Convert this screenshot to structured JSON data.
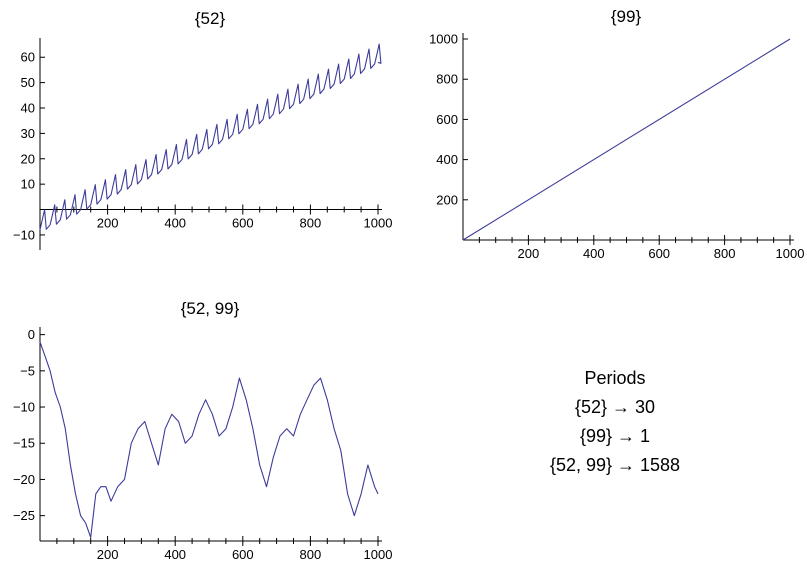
{
  "chart_data": [
    {
      "type": "line",
      "title": "{52}",
      "xlim": [
        0,
        1000
      ],
      "ylim": [
        -12,
        66
      ],
      "x_ticks": [
        200,
        400,
        600,
        800,
        1000
      ],
      "y_ticks": [
        -10,
        10,
        20,
        30,
        40,
        50,
        60
      ],
      "series": [
        {
          "x": [
            0,
            1000
          ],
          "y": [
            -8,
            58
          ],
          "period": 30,
          "spike_height": 7,
          "color": "#3c3c9a"
        }
      ]
    },
    {
      "type": "line",
      "title": "{99}",
      "xlim": [
        0,
        1000
      ],
      "ylim": [
        0,
        1010
      ],
      "x_ticks": [
        200,
        400,
        600,
        800,
        1000
      ],
      "y_ticks": [
        200,
        400,
        600,
        800,
        1000
      ],
      "series": [
        {
          "x": [
            0,
            1000
          ],
          "y": [
            0,
            1000
          ],
          "color": "#3c3c9a"
        }
      ]
    },
    {
      "type": "line",
      "title": "{52, 99}",
      "xlim": [
        0,
        1000
      ],
      "ylim": [
        -28.5,
        0.5
      ],
      "x_ticks": [
        200,
        400,
        600,
        800,
        1000
      ],
      "y_ticks": [
        0,
        -5,
        -10,
        -15,
        -20,
        -25
      ],
      "series": [
        {
          "x": [
            0,
            15,
            30,
            45,
            60,
            75,
            90,
            105,
            120,
            135,
            150,
            165,
            180,
            195,
            210,
            230,
            250,
            270,
            290,
            310,
            330,
            350,
            370,
            390,
            410,
            430,
            450,
            470,
            490,
            510,
            530,
            550,
            570,
            590,
            610,
            630,
            650,
            670,
            690,
            710,
            730,
            750,
            770,
            790,
            810,
            830,
            850,
            870,
            890,
            910,
            930,
            950,
            970,
            990,
            1000
          ],
          "y": [
            -1,
            -3,
            -5,
            -8,
            -10,
            -13,
            -18,
            -22,
            -25,
            -26,
            -28,
            -22,
            -21,
            -21,
            -23,
            -21,
            -20,
            -15,
            -13,
            -12,
            -15,
            -18,
            -13,
            -11,
            -12,
            -15,
            -14,
            -11,
            -9,
            -11,
            -14,
            -13,
            -10,
            -6,
            -9,
            -13,
            -18,
            -21,
            -17,
            -14,
            -13,
            -14,
            -11,
            -9,
            -7,
            -6,
            -9,
            -13,
            -16,
            -22,
            -25,
            -22,
            -18,
            -21,
            -22
          ],
          "color": "#3c3c9a"
        }
      ]
    }
  ],
  "periods": {
    "heading": "Periods",
    "lines": [
      "{52} → 30",
      "{99} → 1",
      "{52, 99} → 1588"
    ]
  }
}
